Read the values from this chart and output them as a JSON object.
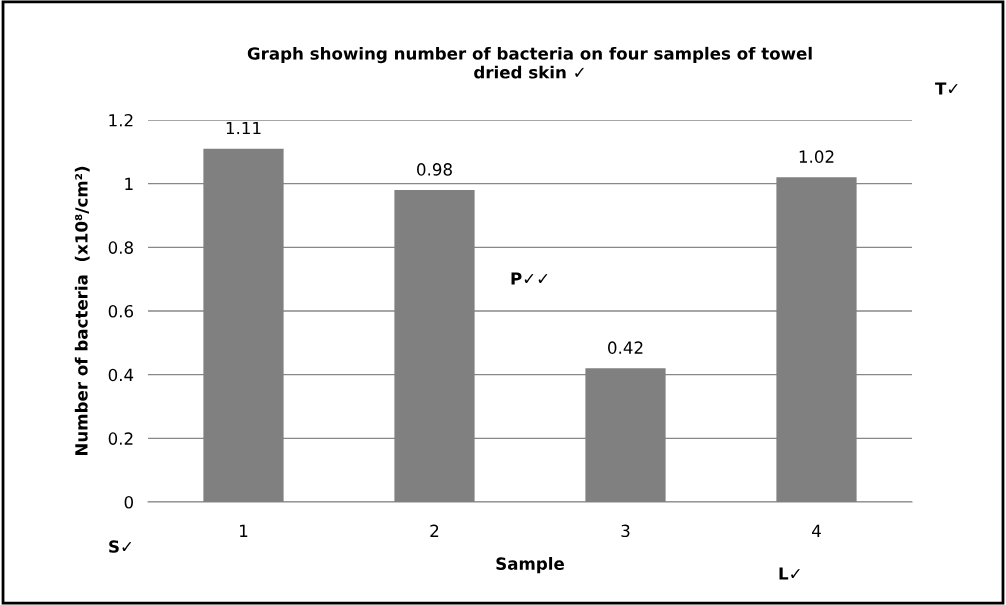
{
  "chart_data": {
    "type": "bar",
    "title": "Graph showing number of bacteria on four samples of towel\ndried skin ✓",
    "xlabel": "Sample",
    "ylabel": "Number of bacteria  (x10⁸/cm²)",
    "categories": [
      "1",
      "2",
      "3",
      "4"
    ],
    "values": [
      1.11,
      0.98,
      0.42,
      1.02
    ],
    "color": "#808080",
    "ylim": [
      0,
      1.2
    ],
    "yticks": [
      0,
      0.2,
      0.4,
      0.6,
      0.8,
      1,
      1.2
    ],
    "grid": "y",
    "data_labels": true,
    "annotations": [
      "T✓",
      "P✓✓",
      "S✓",
      "L✓"
    ]
  }
}
